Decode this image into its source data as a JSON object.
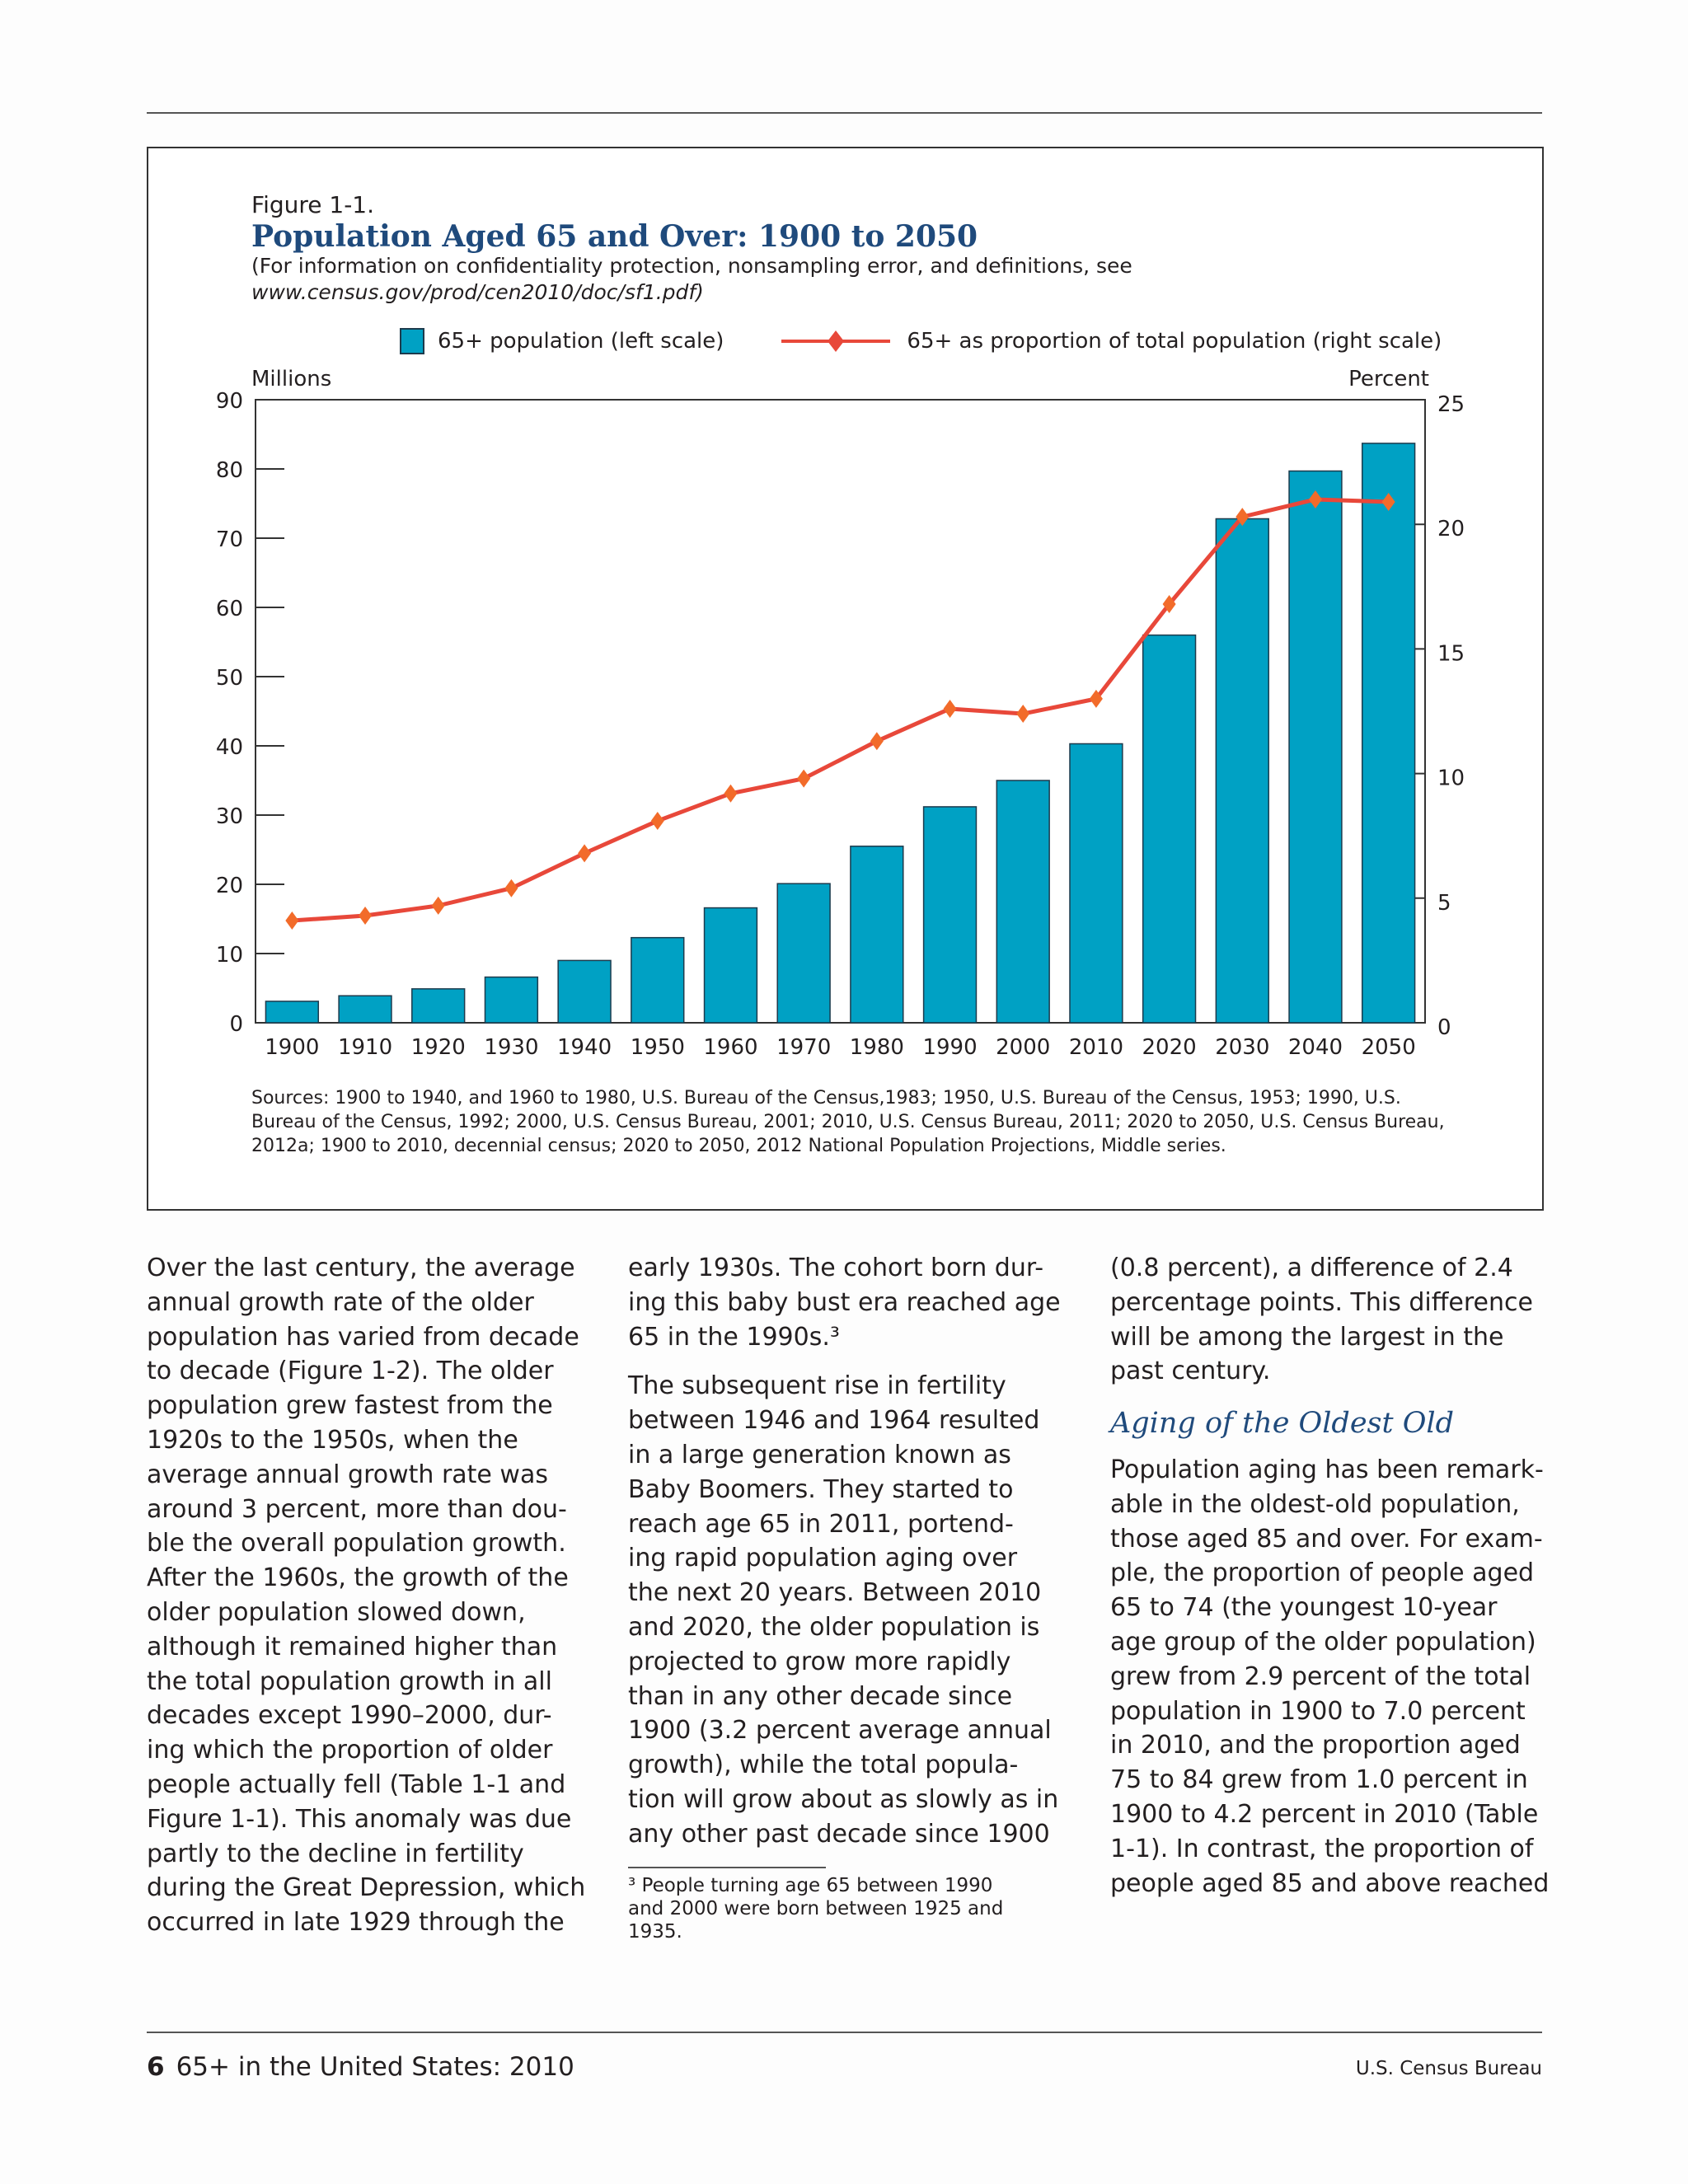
{
  "figure": {
    "label": "Figure 1-1.",
    "title": "Population Aged 65 and Over: 1900 to 2050",
    "subtitle_line1": "(For information on confidentiality protection, nonsampling error, and definitions, see",
    "subtitle_line2": "www.census.gov/prod/cen2010/doc/sf1.pdf)",
    "sources": "Sources: 1900 to 1940, and 1960 to 1980, U.S. Bureau of the Census,1983; 1950, U.S. Bureau of the Census, 1953; 1990, U.S. Bureau of the Census, 1992; 2000, U.S. Census Bureau, 2001; 2010, U.S. Census Bureau, 2011; 2020 to 2050, U.S. Census Bureau, 2012a; 1900 to 2010, decennial census; 2020 to 2050, 2012 National Population Projections, Middle series."
  },
  "chart_data": {
    "type": "bar",
    "categories": [
      "1900",
      "1910",
      "1920",
      "1930",
      "1940",
      "1950",
      "1960",
      "1970",
      "1980",
      "1990",
      "2000",
      "2010",
      "2020",
      "2030",
      "2040",
      "2050"
    ],
    "series": [
      {
        "name": "65+ population (left scale)",
        "type": "bar",
        "axis": "left",
        "color": "#00a1c4",
        "values": [
          3.1,
          3.9,
          4.9,
          6.6,
          9.0,
          12.3,
          16.6,
          20.1,
          25.5,
          31.2,
          35.0,
          40.3,
          56.0,
          72.8,
          79.7,
          83.7
        ]
      },
      {
        "name": "65+ as proportion of total population (right scale)",
        "type": "line",
        "axis": "right",
        "color": "#e8483a",
        "marker_color": "#f26b2a",
        "values": [
          4.1,
          4.3,
          4.7,
          5.4,
          6.8,
          8.1,
          9.2,
          9.8,
          11.3,
          12.6,
          12.4,
          13.0,
          16.8,
          20.3,
          21.0,
          20.9
        ]
      }
    ],
    "ylabel_left": "Millions",
    "ylabel_right": "Percent",
    "ylim_left": [
      0,
      90
    ],
    "ylim_right": [
      0,
      25
    ],
    "yticks_left": [
      "0",
      "10",
      "20",
      "30",
      "40",
      "50",
      "60",
      "70",
      "80",
      "90"
    ],
    "yticks_right": [
      "0",
      "5",
      "10",
      "15",
      "20",
      "25"
    ],
    "grid": false,
    "legend": "top"
  },
  "body": {
    "col1": [
      [
        "Over the last century, the average",
        "annual growth rate of the older",
        "population has varied from decade",
        "to decade (Figure 1-2). The older",
        "population grew fastest from the",
        "1920s to the 1950s, when the",
        "average annual growth rate was",
        "around 3 percent, more than dou-",
        "ble the overall population growth.",
        "After the 1960s, the growth of the",
        "older population slowed down,",
        "although it remained higher than",
        "the total population growth in all",
        "decades except 1990–2000, dur-",
        "ing which the proportion of older",
        "people actually fell (Table 1-1 and",
        "Figure 1-1). This anomaly was due",
        "partly to the decline in fertility",
        "during the Great Depression, which",
        "occurred in late 1929 through the"
      ]
    ],
    "col2": [
      [
        "early 1930s. The cohort born dur-",
        "ing this baby bust era reached age",
        "65 in the 1990s.³"
      ],
      [
        "The subsequent rise in fertility",
        "between 1946 and 1964 resulted",
        "in a large generation known as",
        "Baby Boomers. They started to",
        "reach age 65 in 2011, portend-",
        "ing rapid population aging over",
        "the next 20 years. Between 2010",
        "and 2020, the older population is",
        "projected to grow more rapidly",
        "than in any other decade since",
        "1900 (3.2 percent average annual",
        "growth), while the total popula-",
        "tion will grow about as slowly as in",
        "any other past decade since 1900"
      ]
    ],
    "col3_p1": [
      "(0.8 percent), a difference of 2.4",
      "percentage points. This difference",
      "will be among the largest in the",
      "past century."
    ],
    "col3_heading": "Aging of the Oldest Old",
    "col3_p2": [
      "Population aging has been remark-",
      "able in the oldest-old population,",
      "those aged 85 and over. For exam-",
      "ple, the proportion of people aged",
      "65 to 74 (the youngest 10-year",
      "age group of the older population)",
      "grew from 2.9 percent of the total",
      "population in 1900 to 7.0 percent",
      "in 2010, and the proportion aged",
      "75 to 84 grew from 1.0 percent in",
      "1900 to 4.2 percent in 2010 (Table",
      "1-1). In contrast, the proportion of",
      "people aged 85 and above reached"
    ],
    "footnote": [
      "    ³ People turning age 65 between 1990",
      "and 2000 were born between 1925 and",
      "1935."
    ]
  },
  "footer": {
    "page_number": "6",
    "publication": "65+ in the United States: 2010",
    "publisher": "U.S. Census Bureau"
  }
}
